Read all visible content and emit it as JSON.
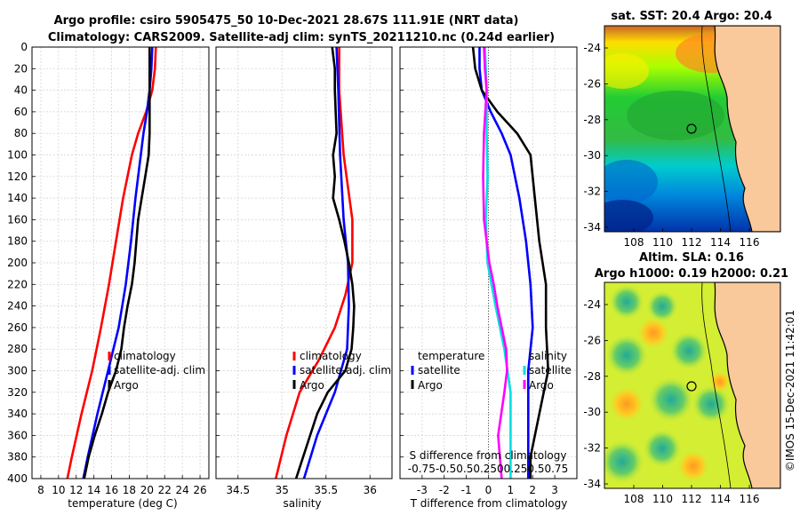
{
  "header": {
    "title_line1": "Argo profile: csiro 5905475_50 10-Dec-2021 28.67S 111.91E (NRT data)",
    "title_line2": "Climatology: CARS2009. Satellite-adj clim: synTS_20211210.nc (0.24d earlier)"
  },
  "colors": {
    "climatology": "#ff0000",
    "satellite": "#0000ff",
    "argo": "#000000",
    "salinity_diff": "#ff00ff",
    "sat_salinity_diff": "#00e0e0",
    "land": "#f9c89b"
  },
  "chart_data": [
    {
      "id": "temperature",
      "type": "line",
      "xlabel": "temperature (deg C)",
      "xlim": [
        7,
        27
      ],
      "xticks": [
        8,
        10,
        12,
        14,
        16,
        18,
        20,
        22,
        24,
        26
      ],
      "ylim": [
        0,
        400
      ],
      "yticks": [
        0,
        20,
        40,
        60,
        80,
        100,
        120,
        140,
        160,
        180,
        200,
        220,
        240,
        260,
        280,
        300,
        320,
        340,
        360,
        380,
        400
      ],
      "legend": [
        "climatology",
        "satellite-adj. clim",
        "Argo"
      ],
      "series": [
        {
          "name": "climatology",
          "depth": [
            0,
            20,
            40,
            60,
            80,
            100,
            140,
            180,
            220,
            260,
            300,
            340,
            380,
            400
          ],
          "values": [
            21.0,
            20.9,
            20.6,
            19.9,
            19.0,
            18.3,
            17.3,
            16.5,
            15.7,
            14.8,
            13.8,
            12.6,
            11.5,
            11.0
          ]
        },
        {
          "name": "satellite-adj. clim",
          "depth": [
            0,
            20,
            40,
            60,
            80,
            100,
            140,
            180,
            220,
            260,
            300,
            340,
            380,
            400
          ],
          "values": [
            20.6,
            20.5,
            20.3,
            20.0,
            19.6,
            19.3,
            18.7,
            18.2,
            17.6,
            16.8,
            15.6,
            14.4,
            13.3,
            12.8
          ]
        },
        {
          "name": "Argo",
          "depth": [
            0,
            10,
            20,
            40,
            60,
            80,
            100,
            120,
            140,
            160,
            180,
            200,
            220,
            240,
            260,
            280,
            300,
            320,
            340,
            360,
            380,
            400
          ],
          "values": [
            20.3,
            20.3,
            20.3,
            20.3,
            20.3,
            20.3,
            20.2,
            19.8,
            19.4,
            19.0,
            18.8,
            18.6,
            18.3,
            17.8,
            17.4,
            17.1,
            16.5,
            15.6,
            14.9,
            14.1,
            13.4,
            12.9
          ]
        }
      ]
    },
    {
      "id": "salinity",
      "type": "line",
      "xlabel": "salinity",
      "xlim": [
        34.25,
        36.25
      ],
      "xticks": [
        34.5,
        35,
        35.5,
        36
      ],
      "ylim": [
        0,
        400
      ],
      "legend": [
        "climatology",
        "satellite-adj. clim",
        "Argo"
      ],
      "series": [
        {
          "name": "climatology",
          "depth": [
            0,
            40,
            100,
            160,
            200,
            230,
            260,
            290,
            320,
            360,
            400
          ],
          "values": [
            35.65,
            35.65,
            35.7,
            35.8,
            35.8,
            35.72,
            35.6,
            35.42,
            35.2,
            35.05,
            34.93
          ]
        },
        {
          "name": "satellite-adj. clim",
          "depth": [
            0,
            40,
            100,
            160,
            200,
            240,
            280,
            320,
            360,
            400
          ],
          "values": [
            35.62,
            35.64,
            35.66,
            35.7,
            35.75,
            35.76,
            35.74,
            35.6,
            35.4,
            35.25
          ]
        },
        {
          "name": "Argo",
          "depth": [
            0,
            20,
            40,
            80,
            100,
            120,
            140,
            160,
            180,
            200,
            220,
            240,
            260,
            280,
            300,
            320,
            340,
            360,
            380,
            400
          ],
          "values": [
            35.57,
            35.6,
            35.6,
            35.62,
            35.58,
            35.6,
            35.58,
            35.65,
            35.71,
            35.76,
            35.8,
            35.82,
            35.81,
            35.79,
            35.72,
            35.52,
            35.4,
            35.32,
            35.24,
            35.16
          ]
        }
      ]
    },
    {
      "id": "difference",
      "type": "line",
      "xlabel": "T difference from climatology",
      "xlabel_top": "S difference from climatology",
      "xlim": [
        -4,
        4
      ],
      "xticks": [
        -3,
        -2,
        -1,
        0,
        1,
        2,
        3
      ],
      "s_ticks": [
        "-0.75",
        "-0.5",
        "0.5",
        "0.25",
        "0",
        "0.25",
        "0.5",
        "0.75"
      ],
      "legend_left": [
        "temperature",
        "satellite",
        "Argo"
      ],
      "legend_right": [
        "salinity",
        "satellite",
        "Argo"
      ],
      "series": [
        {
          "name": "T satellite",
          "depth": [
            0,
            20,
            40,
            60,
            80,
            100,
            140,
            180,
            220,
            260,
            300,
            340,
            380,
            400
          ],
          "values": [
            -0.4,
            -0.4,
            -0.3,
            0.1,
            0.6,
            1.0,
            1.4,
            1.7,
            1.9,
            2.0,
            1.8,
            1.8,
            1.8,
            1.8
          ]
        },
        {
          "name": "T Argo",
          "depth": [
            0,
            20,
            40,
            60,
            80,
            100,
            140,
            180,
            220,
            260,
            300,
            340,
            380,
            400
          ],
          "values": [
            -0.7,
            -0.6,
            -0.3,
            0.4,
            1.3,
            1.9,
            2.1,
            2.3,
            2.6,
            2.6,
            2.7,
            2.3,
            1.9,
            1.9
          ]
        },
        {
          "name": "S satellite",
          "depth": [
            0,
            20,
            40,
            80,
            120,
            160,
            200,
            240,
            280,
            320,
            360,
            400
          ],
          "values": [
            -0.04,
            -0.03,
            -0.02,
            -0.02,
            -0.01,
            -0.03,
            -0.01,
            0.08,
            0.18,
            0.25,
            0.25,
            0.25
          ]
        },
        {
          "name": "S Argo",
          "depth": [
            0,
            20,
            40,
            80,
            120,
            160,
            200,
            220,
            240,
            280,
            300,
            320,
            360,
            400
          ],
          "values": [
            -0.05,
            -0.04,
            -0.02,
            -0.05,
            -0.06,
            -0.05,
            0.01,
            0.06,
            0.1,
            0.2,
            0.21,
            0.18,
            0.11,
            0.15
          ]
        }
      ]
    }
  ],
  "map_top": {
    "title": "sat. SST: 20.4 Argo: 20.4",
    "yticks": [
      "-24",
      "-26",
      "-28",
      "-30",
      "-32",
      "-34"
    ],
    "xticks": [
      "108",
      "110",
      "112",
      "114",
      "116"
    ]
  },
  "map_bottom": {
    "title_line1": "Altim. SLA: 0.16",
    "title_line2": "Argo h1000: 0.19 h2000: 0.21",
    "yticks": [
      "-24",
      "-26",
      "-28",
      "-30",
      "-32",
      "-34"
    ],
    "xticks": [
      "108",
      "110",
      "112",
      "114",
      "116"
    ]
  },
  "footer": {
    "stamp": "©IMOS 15-Dec-2021 11:42:01"
  }
}
